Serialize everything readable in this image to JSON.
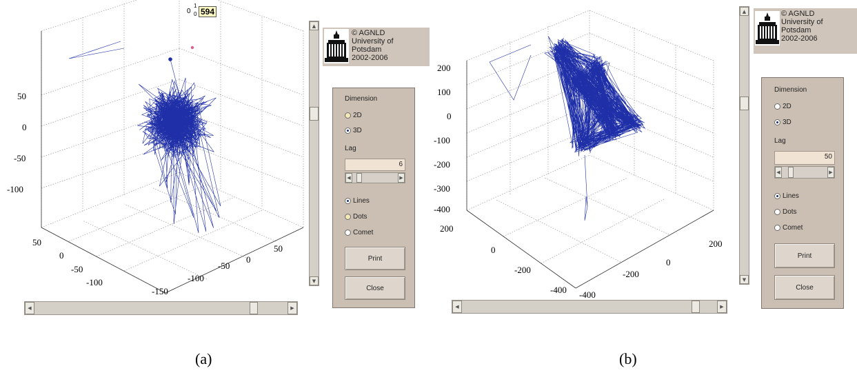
{
  "panels": [
    {
      "logo": {
        "text": "© AGNLD\nUniversity of\nPotsdam\n2002-2006",
        "icon": "university-building-icon"
      },
      "controls": {
        "dimension_label": "Dimension",
        "dim_2d": "2D",
        "dim_3d": "3D",
        "lag_label": "Lag",
        "lag_value": "6",
        "lag_slider": 0.1,
        "lines": "Lines",
        "dots": "Dots",
        "comet": "Comet",
        "print": "Print",
        "close": "Close"
      },
      "axes": {
        "z_ticks": [
          "50",
          "0",
          "-50",
          "-100"
        ],
        "y_ticks": [
          "50",
          "0",
          "-50",
          "-100"
        ],
        "x_ticks": [
          "-150",
          "-100",
          "-50",
          "0",
          "50"
        ]
      },
      "tooltip": {
        "value": "594",
        "index_top": "1",
        "index_bottom": "0",
        "prefix": "0"
      },
      "caption": "(a)",
      "h_scroll": 0.88,
      "v_scroll": 0.33
    },
    {
      "logo": {
        "text": "© AGNLD\nUniversity of\nPotsdam\n2002-2006",
        "icon": "university-building-icon"
      },
      "controls": {
        "dimension_label": "Dimension",
        "dim_2d": "2D",
        "dim_3d": "3D",
        "lag_label": "Lag",
        "lag_value": "50",
        "lag_slider": 0.15,
        "lines": "Lines",
        "dots": "Dots",
        "comet": "Comet",
        "print": "Print",
        "close": "Close"
      },
      "axes": {
        "z_ticks": [
          "200",
          "100",
          "0",
          "-100",
          "-200",
          "-300",
          "-400"
        ],
        "y_ticks": [
          "200",
          "0",
          "-200",
          "-400"
        ],
        "x_ticks": [
          "-400",
          "-200",
          "0",
          "200"
        ]
      },
      "caption": "(b)",
      "h_scroll": 0.93,
      "v_scroll": 0.33
    }
  ],
  "colors": {
    "trajectory": "#1f2fa8",
    "panel_bg": "#cbbfb3",
    "logo_bg": "#cfc5bb"
  }
}
